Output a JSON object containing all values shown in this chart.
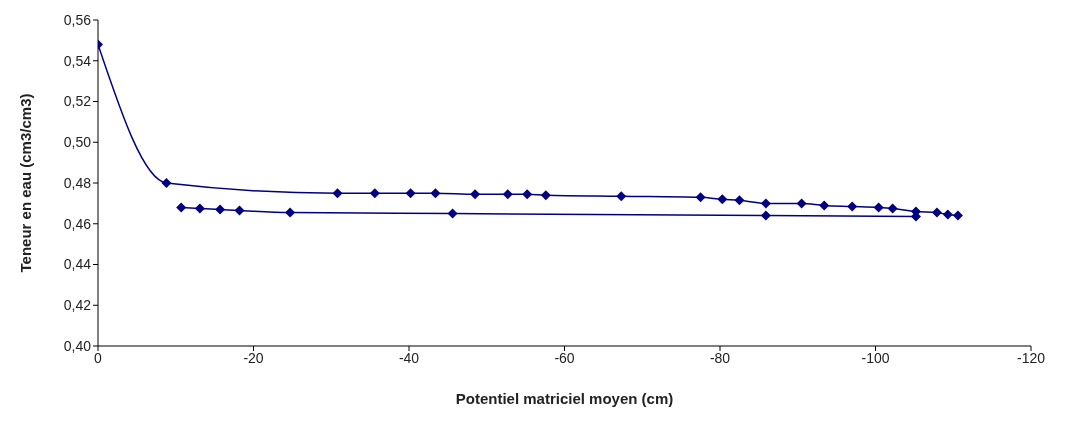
{
  "chart_data": {
    "type": "line",
    "xlabel": "Potentiel matriciel  moyen (cm)",
    "ylabel": "Teneur en eau (cm3/cm3)",
    "xlim": [
      0,
      -120
    ],
    "xticks": [
      0,
      -20,
      -40,
      -60,
      -80,
      -100,
      -120
    ],
    "ylim": [
      0.4,
      0.56
    ],
    "yticks": [
      {
        "value": 0.4,
        "label": "0,40"
      },
      {
        "value": 0.42,
        "label": "0,42"
      },
      {
        "value": 0.44,
        "label": "0,44"
      },
      {
        "value": 0.46,
        "label": "0,46"
      },
      {
        "value": 0.48,
        "label": "0,48"
      },
      {
        "value": 0.5,
        "label": "0,50"
      },
      {
        "value": 0.52,
        "label": "0,52"
      },
      {
        "value": 0.54,
        "label": "0,54"
      },
      {
        "value": 0.56,
        "label": "0,56"
      }
    ],
    "marker": "diamond",
    "line_style": "solid",
    "series": [
      {
        "color": "#000080",
        "x": [
          0,
          -8.8,
          -30.8,
          -35.6,
          -40.2,
          -43.4,
          -48.5,
          -52.7,
          -55.2,
          -57.6,
          -67.3,
          -77.5,
          -80.3,
          -82.5,
          -85.9,
          -90.5,
          -93.4,
          -97.0,
          -100.4,
          -102.2,
          -105.2,
          -107.9,
          -109.3,
          -110.6
        ],
        "values": [
          0.548,
          0.48,
          0.475,
          0.475,
          0.475,
          0.475,
          0.4745,
          0.4745,
          0.4745,
          0.474,
          0.4735,
          0.473,
          0.472,
          0.4715,
          0.47,
          0.47,
          0.469,
          0.4685,
          0.468,
          0.4675,
          0.466,
          0.4655,
          0.4645,
          0.464
        ]
      },
      {
        "color": "#000080",
        "x": [
          -10.7,
          -13.1,
          -15.7,
          -18.2,
          -24.7,
          -45.6,
          -85.9,
          -105.2
        ],
        "values": [
          0.468,
          0.4675,
          0.467,
          0.4665,
          0.4655,
          0.465,
          0.464,
          0.4635
        ]
      }
    ]
  }
}
